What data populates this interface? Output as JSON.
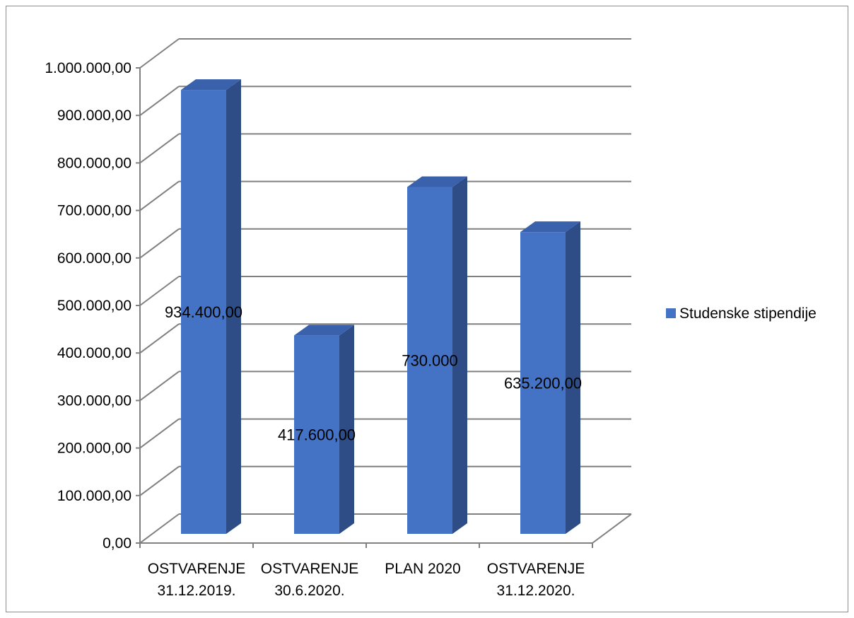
{
  "chart_data": {
    "type": "bar",
    "categories": [
      [
        "OSTVARENJE",
        "31.12.2019."
      ],
      [
        "OSTVARENJE",
        "30.6.2020."
      ],
      [
        "PLAN 2020"
      ],
      [
        "OSTVARENJE",
        "31.12.2020."
      ]
    ],
    "series": [
      {
        "name": "Studenske stipendije",
        "values": [
          934400,
          417600,
          730000,
          635200
        ]
      }
    ],
    "data_labels": [
      "934.400,00",
      "417.600,00",
      "730.000",
      "635.200,00"
    ],
    "y_ticks": [
      0,
      100000,
      200000,
      300000,
      400000,
      500000,
      600000,
      700000,
      800000,
      900000,
      1000000
    ],
    "y_tick_labels": [
      "0,00",
      "100.000,00",
      "200.000,00",
      "300.000,00",
      "400.000,00",
      "500.000,00",
      "600.000,00",
      "700.000,00",
      "800.000,00",
      "900.000,00",
      "1.000.000,00"
    ],
    "ylim": [
      0,
      1000000
    ],
    "grid": true,
    "legend_position": "right",
    "three_d": true,
    "colors": {
      "front": "#4472C4",
      "side": "#2E4D86",
      "top": "#3A62AC",
      "grid": "#808080"
    }
  }
}
